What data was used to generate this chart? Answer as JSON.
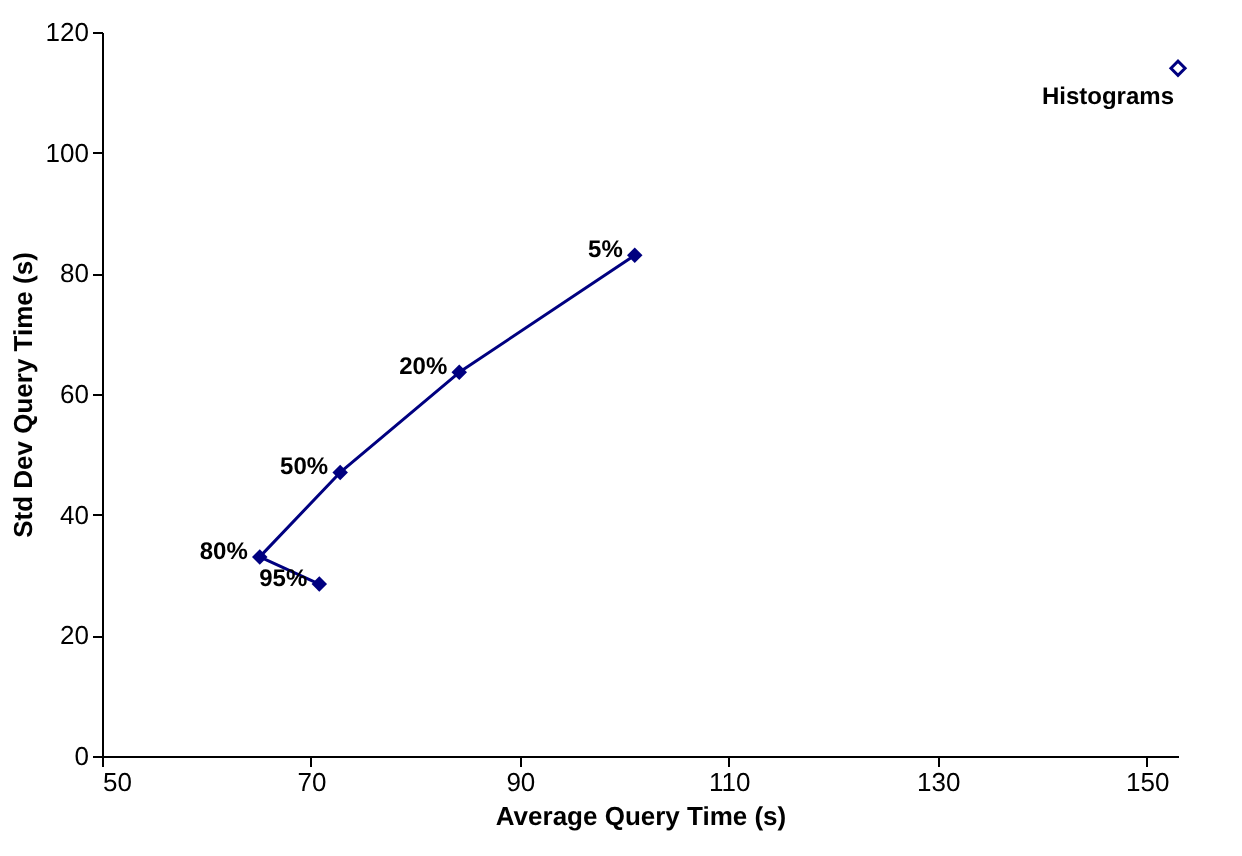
{
  "chart_data": {
    "type": "line",
    "xlabel": "Average Query Time (s)",
    "ylabel": "Std Dev Query Time (s)",
    "xlim": [
      50,
      153
    ],
    "xticks": [
      50,
      70,
      90,
      110,
      130,
      150
    ],
    "ylim": [
      0,
      120
    ],
    "yticks": [
      0,
      20,
      40,
      60,
      80,
      100,
      120
    ],
    "grid": false,
    "legend": false,
    "marker": "diamond",
    "line_style": "solid",
    "series": [
      {
        "color": "#000080",
        "x": [
          101,
          84.2,
          72.8,
          65.1,
          70.8
        ],
        "values": [
          83,
          63.6,
          47,
          33,
          28.5
        ]
      },
      {
        "type": "scatter",
        "name": "Histograms",
        "color": "#000080",
        "x": [
          153
        ],
        "values": [
          114
        ]
      }
    ],
    "annotations": [
      {
        "text": "5%",
        "x": 101,
        "y": 83
      },
      {
        "text": "20%",
        "x": 84.2,
        "y": 63.6
      },
      {
        "text": "50%",
        "x": 72.8,
        "y": 47
      },
      {
        "text": "80%",
        "x": 65.1,
        "y": 33
      },
      {
        "text": "95%",
        "x": 70.8,
        "y": 28.5
      }
    ]
  }
}
